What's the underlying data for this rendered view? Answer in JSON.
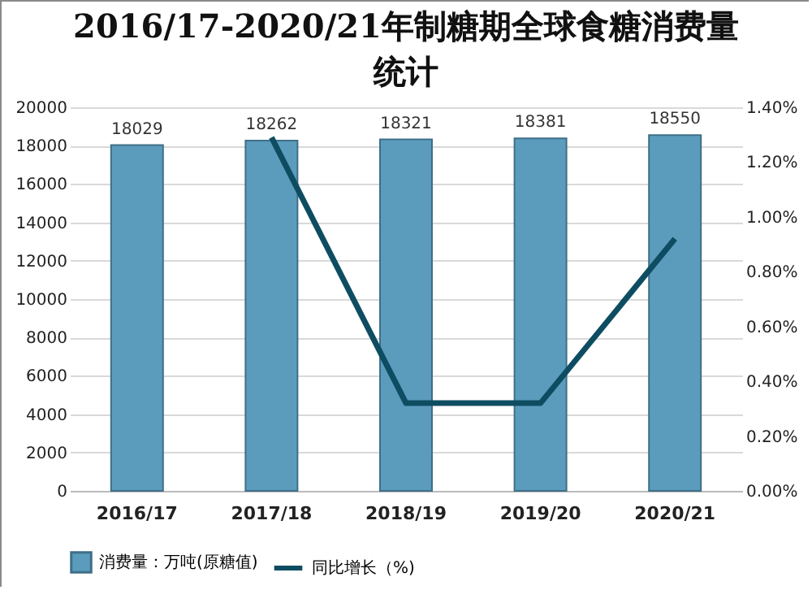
{
  "chart_data": {
    "type": "bar",
    "title": "2016/17-2020/21年制糖期全球食糖消费量统计",
    "categories": [
      "2016/17",
      "2017/18",
      "2018/19",
      "2019/20",
      "2020/21"
    ],
    "series": [
      {
        "name": "消费量：万吨(原糖值)",
        "color": "#5b9cbd",
        "values": [
          18029,
          18262,
          18321,
          18381,
          18550
        ],
        "value_labels": [
          "18029",
          "18262",
          "18321",
          "18381",
          "18550"
        ]
      },
      {
        "name": "同比增长（%)",
        "type": "line",
        "axis": "y2",
        "color": "#0e4d61",
        "values": [
          null,
          1.29,
          0.32,
          0.32,
          0.92
        ]
      }
    ],
    "ylim": [
      0,
      20000
    ],
    "yticks": [
      0,
      2000,
      4000,
      6000,
      8000,
      10000,
      12000,
      14000,
      16000,
      18000,
      20000
    ],
    "y2lim": [
      0,
      1.4
    ],
    "y2ticks": [
      {
        "value": 0,
        "label": "0.00%"
      },
      {
        "value": 0.2,
        "label": "0.20%"
      },
      {
        "value": 0.4,
        "label": "0.40%"
      },
      {
        "value": 0.6,
        "label": "0.60%"
      },
      {
        "value": 0.8,
        "label": "0.80%"
      },
      {
        "value": 1.0,
        "label": "1.00%"
      },
      {
        "value": 1.2,
        "label": "1.20%"
      },
      {
        "value": 1.4,
        "label": "1.40%"
      }
    ],
    "grid": "y",
    "legend": "bottom"
  }
}
